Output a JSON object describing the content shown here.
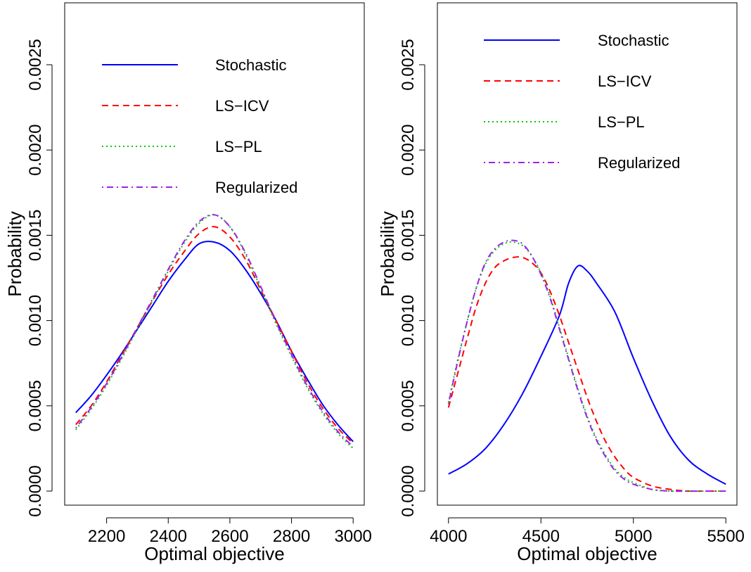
{
  "chart_data": [
    {
      "type": "line",
      "xlabel": "Optimal objective",
      "ylabel": "Probability",
      "xlim": [
        2100,
        3000
      ],
      "ylim": [
        0,
        0.00284
      ],
      "x_ticks": [
        2200,
        2400,
        2600,
        2800,
        3000
      ],
      "x_tick_labels": [
        "2200",
        "2400",
        "2600",
        "2800",
        "3000"
      ],
      "y_ticks": [
        0,
        0.0005,
        0.001,
        0.0015,
        0.002,
        0.0025
      ],
      "y_tick_labels": [
        "0.0000",
        "0.0005",
        "0.0010",
        "0.0015",
        "0.0020",
        "0.0025"
      ],
      "grid": false,
      "legend_position": "top",
      "series": [
        {
          "name": "Stochastic",
          "color": "#0000ff",
          "dash": "solid",
          "x": [
            2100,
            2150,
            2200,
            2250,
            2300,
            2350,
            2400,
            2450,
            2500,
            2550,
            2600,
            2650,
            2700,
            2750,
            2800,
            2850,
            2900,
            2950,
            3000
          ],
          "y": [
            0.00046,
            0.00056,
            0.00068,
            0.00081,
            0.00095,
            0.00109,
            0.00123,
            0.00135,
            0.00145,
            0.00146,
            0.00141,
            0.0013,
            0.00116,
            0.001,
            0.00082,
            0.00066,
            0.00051,
            0.00039,
            0.00029
          ]
        },
        {
          "name": "LS−ICV",
          "color": "#ff0000",
          "dash": "dashed",
          "x": [
            2100,
            2150,
            2200,
            2250,
            2300,
            2350,
            2400,
            2450,
            2500,
            2550,
            2600,
            2650,
            2700,
            2750,
            2800,
            2850,
            2900,
            2950,
            3000
          ],
          "y": [
            0.00039,
            0.0005,
            0.00064,
            0.0008,
            0.00096,
            0.00112,
            0.00127,
            0.0014,
            0.00151,
            0.00155,
            0.00149,
            0.00136,
            0.00118,
            0.001,
            0.00082,
            0.00064,
            0.00049,
            0.00037,
            0.00028
          ]
        },
        {
          "name": "LS−PL",
          "color": "#00cc00",
          "dash": "dotted",
          "x": [
            2100,
            2150,
            2200,
            2250,
            2300,
            2350,
            2400,
            2450,
            2500,
            2550,
            2600,
            2650,
            2700,
            2750,
            2800,
            2850,
            2900,
            2950,
            3000
          ],
          "y": [
            0.00036,
            0.00048,
            0.00062,
            0.00078,
            0.00095,
            0.00112,
            0.00129,
            0.00145,
            0.00157,
            0.00162,
            0.00155,
            0.00139,
            0.00119,
            0.00098,
            0.00079,
            0.00061,
            0.00046,
            0.00034,
            0.00025
          ]
        },
        {
          "name": "Regularized",
          "color": "#a020f0",
          "dash": "dotdash",
          "x": [
            2100,
            2150,
            2200,
            2250,
            2300,
            2350,
            2400,
            2450,
            2500,
            2550,
            2600,
            2650,
            2700,
            2750,
            2800,
            2850,
            2900,
            2950,
            3000
          ],
          "y": [
            0.00037,
            0.00049,
            0.00063,
            0.00079,
            0.00096,
            0.00113,
            0.0013,
            0.00146,
            0.00158,
            0.00162,
            0.00155,
            0.0014,
            0.0012,
            0.00099,
            0.0008,
            0.00062,
            0.00047,
            0.00035,
            0.00026
          ]
        }
      ]
    },
    {
      "type": "line",
      "xlabel": "Optimal objective",
      "ylabel": "Probability",
      "xlim": [
        4000,
        5500
      ],
      "ylim": [
        0,
        0.00284
      ],
      "x_ticks": [
        4000,
        4500,
        5000,
        5500
      ],
      "x_tick_labels": [
        "4000",
        "4500",
        "5000",
        "5500"
      ],
      "y_ticks": [
        0,
        0.0005,
        0.001,
        0.0015,
        0.002,
        0.0025
      ],
      "y_tick_labels": [
        "0.0000",
        "0.0005",
        "0.0010",
        "0.0015",
        "0.0020",
        "0.0025"
      ],
      "grid": false,
      "legend_position": "top",
      "series": [
        {
          "name": "Stochastic",
          "color": "#0000ff",
          "dash": "solid",
          "x": [
            4000,
            4100,
            4200,
            4300,
            4400,
            4500,
            4600,
            4650,
            4700,
            4750,
            4800,
            4900,
            5000,
            5100,
            5200,
            5300,
            5400,
            5500
          ],
          "y": [
            0.0001,
            0.00016,
            0.00025,
            0.00039,
            0.00057,
            0.00079,
            0.00103,
            0.00122,
            0.00132,
            0.00129,
            0.00122,
            0.00105,
            0.00078,
            0.00053,
            0.00032,
            0.00018,
            0.0001,
            4e-05
          ]
        },
        {
          "name": "LS−ICV",
          "color": "#ff0000",
          "dash": "dashed",
          "x": [
            4000,
            4050,
            4100,
            4150,
            4200,
            4250,
            4300,
            4350,
            4400,
            4450,
            4500,
            4550,
            4600,
            4650,
            4700,
            4750,
            4800,
            4850,
            4900,
            4950,
            5000,
            5100,
            5200,
            5300,
            5400,
            5500
          ],
          "y": [
            0.00049,
            0.00069,
            0.00089,
            0.00108,
            0.00122,
            0.00131,
            0.00135,
            0.00137,
            0.00137,
            0.00134,
            0.00128,
            0.00117,
            0.00103,
            0.00087,
            0.00071,
            0.00055,
            0.00041,
            0.00029,
            0.0002,
            0.00013,
            8e-05,
            3e-05,
            1e-05,
            0.0,
            0.0,
            0.0
          ]
        },
        {
          "name": "LS−PL",
          "color": "#00cc00",
          "dash": "dotted",
          "x": [
            4000,
            4050,
            4100,
            4150,
            4200,
            4250,
            4300,
            4350,
            4400,
            4450,
            4500,
            4550,
            4600,
            4650,
            4700,
            4750,
            4800,
            4850,
            4900,
            4950,
            5000,
            5100,
            5200,
            5300,
            5400,
            5500
          ],
          "y": [
            0.00052,
            0.00077,
            0.00099,
            0.00119,
            0.00133,
            0.00141,
            0.00145,
            0.00146,
            0.00144,
            0.00138,
            0.00128,
            0.00114,
            0.00096,
            0.00078,
            0.0006,
            0.00044,
            0.00031,
            0.00021,
            0.00013,
            8e-05,
            5e-05,
            1e-05,
            0.0,
            0.0,
            0.0,
            0.0
          ]
        },
        {
          "name": "Regularized",
          "color": "#a020f0",
          "dash": "dotdash",
          "x": [
            4000,
            4050,
            4100,
            4150,
            4200,
            4250,
            4300,
            4350,
            4400,
            4450,
            4500,
            4550,
            4600,
            4650,
            4700,
            4750,
            4800,
            4850,
            4900,
            4950,
            5000,
            5100,
            5200,
            5300,
            5400,
            5500
          ],
          "y": [
            0.00051,
            0.00076,
            0.00099,
            0.00119,
            0.00134,
            0.00142,
            0.00146,
            0.00147,
            0.00145,
            0.00138,
            0.00127,
            0.00113,
            0.00095,
            0.00077,
            0.00059,
            0.00043,
            0.0003,
            0.0002,
            0.00012,
            7e-05,
            4e-05,
            1e-05,
            0.0,
            0.0,
            0.0,
            0.0
          ]
        }
      ]
    }
  ]
}
